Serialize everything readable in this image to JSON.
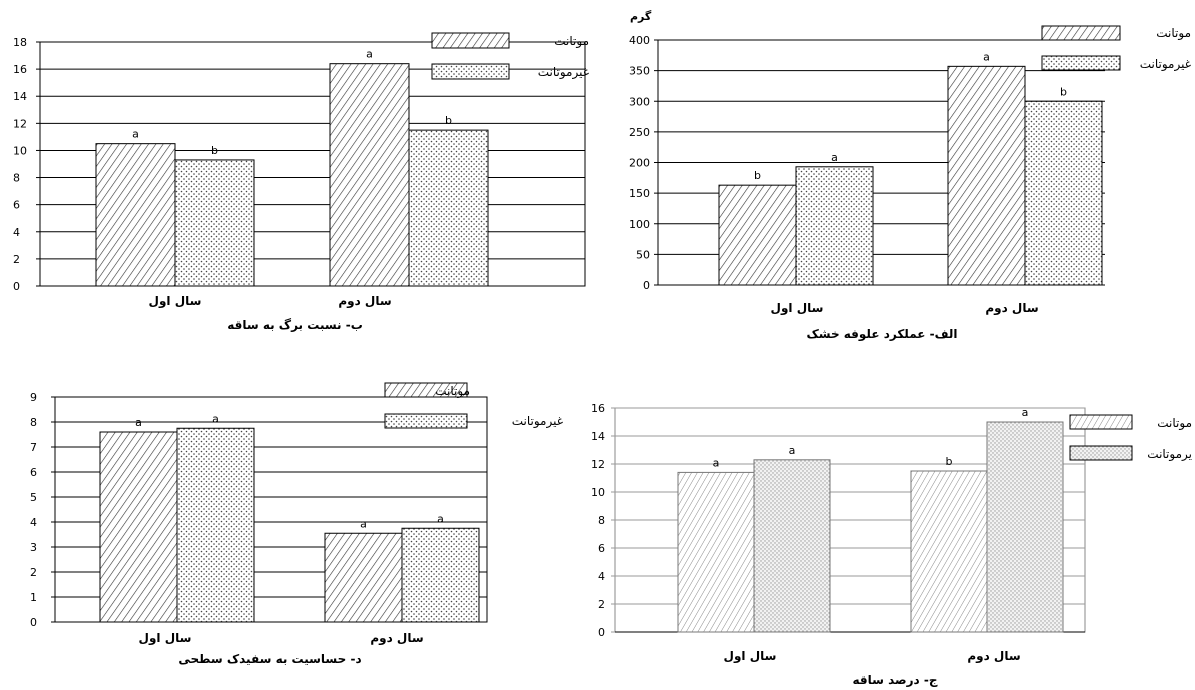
{
  "chart_data": [
    {
      "type": "bar",
      "caption": "ب- نسبت برگ به ساقه",
      "categories": [
        "سال اول",
        "سال دوم"
      ],
      "series": [
        {
          "name": "موتانت",
          "values": [
            10.5,
            16.4
          ],
          "labels": [
            "a",
            "a"
          ]
        },
        {
          "name": "غیرموتانت",
          "values": [
            9.3,
            11.5
          ],
          "labels": [
            "b",
            "b"
          ]
        }
      ],
      "ylim": [
        0,
        18
      ],
      "yticks": [
        0,
        2,
        4,
        6,
        8,
        10,
        12,
        14,
        16,
        18
      ],
      "grid": true,
      "legend": "top-right"
    },
    {
      "type": "bar",
      "caption": "الف- عملکرد علوفه خشک",
      "ylabel": "گرم",
      "categories": [
        "سال اول",
        "سال دوم"
      ],
      "series": [
        {
          "name": "موتانت",
          "values": [
            163,
            357
          ],
          "labels": [
            "b",
            "a"
          ]
        },
        {
          "name": "غیرموتانت",
          "values": [
            193,
            300
          ],
          "labels": [
            "a",
            "b"
          ]
        }
      ],
      "ylim": [
        0,
        400
      ],
      "yticks": [
        0,
        50,
        100,
        150,
        200,
        250,
        300,
        350,
        400
      ],
      "grid": true,
      "legend": "top-right"
    },
    {
      "type": "bar",
      "caption": "د- حساسیت به سفیدک سطحی",
      "categories": [
        "سال اول",
        "سال دوم"
      ],
      "series": [
        {
          "name": "موتانت",
          "values": [
            7.6,
            3.55
          ],
          "labels": [
            "a",
            "a"
          ]
        },
        {
          "name": "غیرموتانت",
          "values": [
            7.75,
            3.75
          ],
          "labels": [
            "a",
            "a"
          ]
        }
      ],
      "ylim": [
        0,
        9
      ],
      "yticks": [
        0,
        1,
        2,
        3,
        4,
        5,
        6,
        7,
        8,
        9
      ],
      "grid": true,
      "legend": "top-right"
    },
    {
      "type": "bar",
      "caption": "ج- درصد ساقه",
      "categories": [
        "سال اول",
        "سال دوم"
      ],
      "series": [
        {
          "name": "موتانت",
          "values": [
            11.4,
            11.5
          ],
          "labels": [
            "a",
            "b"
          ]
        },
        {
          "name": "یرموتانت",
          "values": [
            12.3,
            15.0
          ],
          "labels": [
            "a",
            "a"
          ]
        }
      ],
      "ylim": [
        0,
        16
      ],
      "yticks": [
        0,
        2,
        4,
        6,
        8,
        10,
        12,
        14,
        16
      ],
      "grid": true,
      "legend": "top-right"
    }
  ]
}
